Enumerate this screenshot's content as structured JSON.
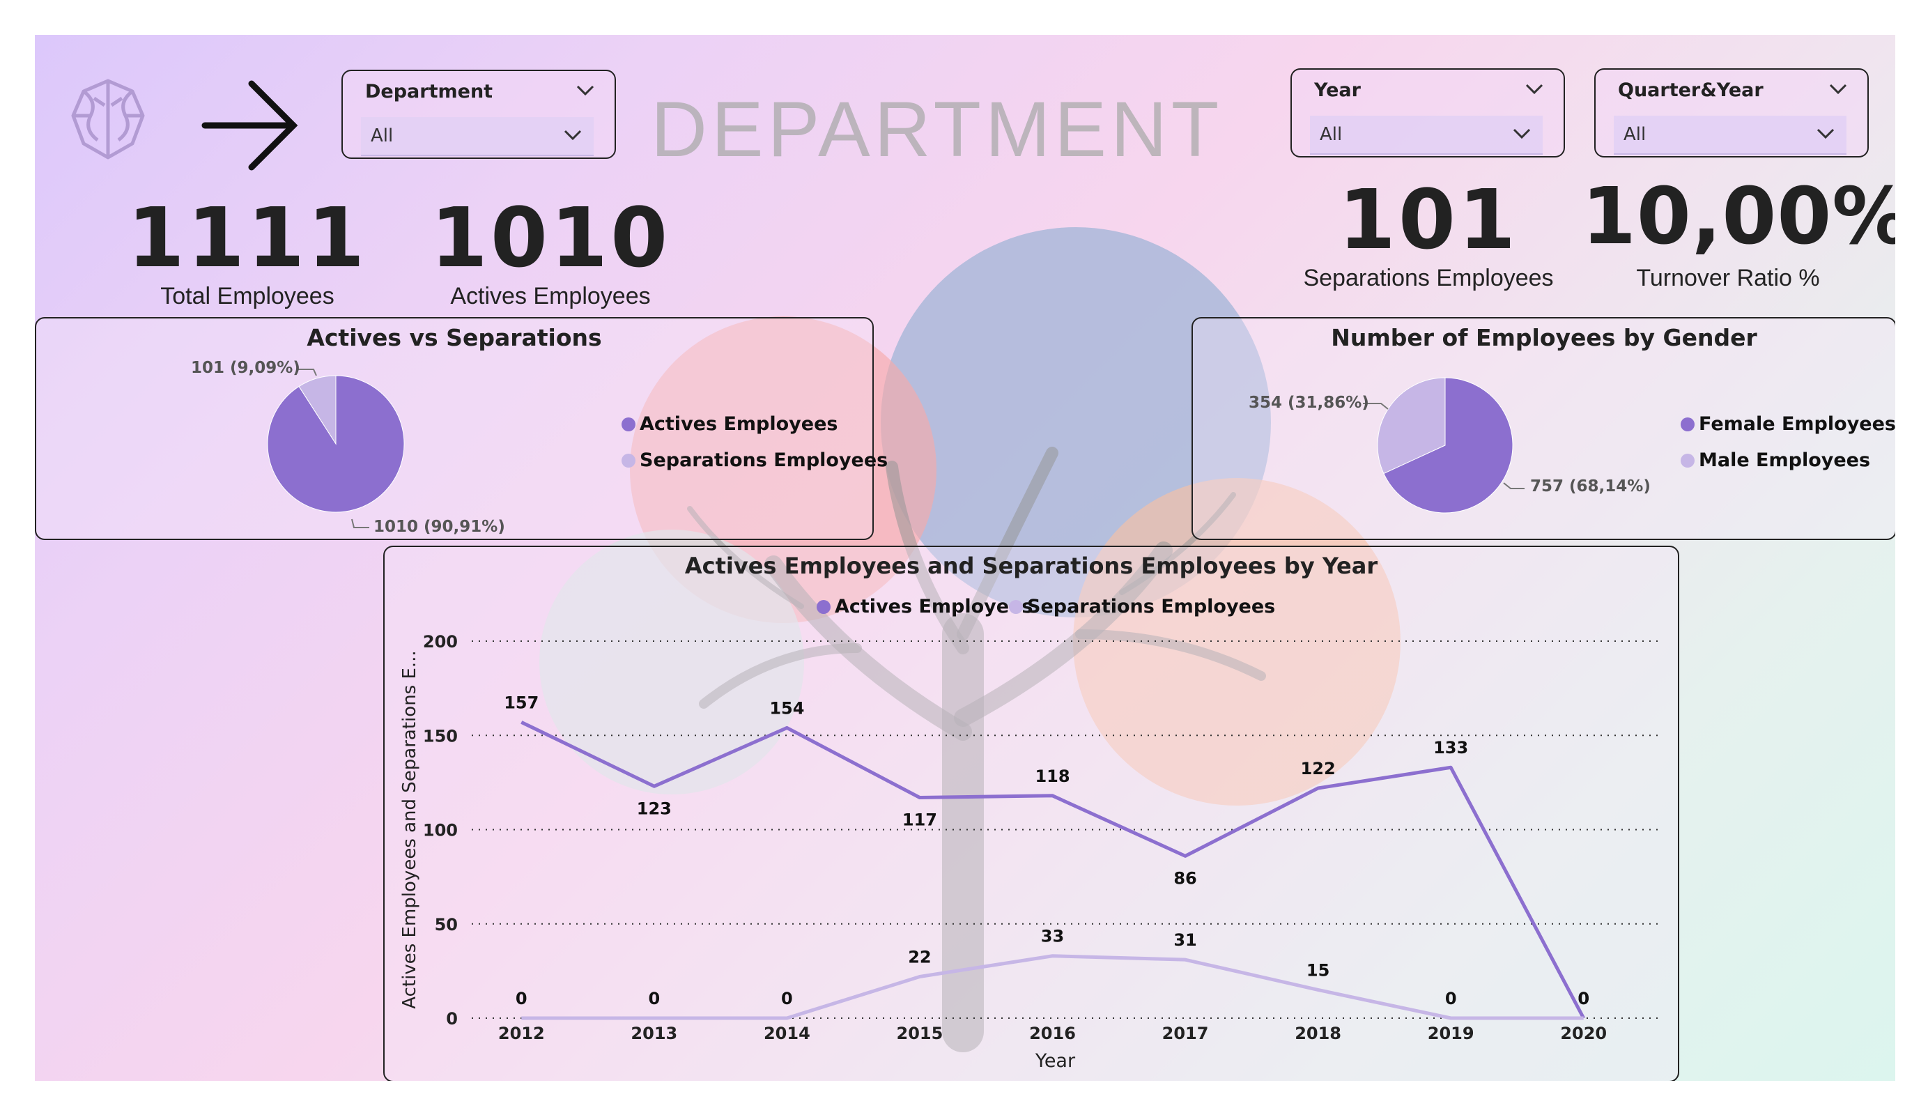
{
  "header": {
    "title": "DEPARTMENT",
    "logo_icon": "brain-icon",
    "nav_icon": "arrow-right-icon"
  },
  "filters": {
    "department": {
      "label": "Department",
      "value": "All"
    },
    "year": {
      "label": "Year",
      "value": "All"
    },
    "quarter_year": {
      "label": "Quarter&Year",
      "value": "All"
    }
  },
  "kpis": {
    "total_employees": {
      "value": "1111",
      "label": "Total Employees"
    },
    "actives_employees": {
      "value": "1010",
      "label": "Actives Employees"
    },
    "separations_employees": {
      "value": "101",
      "label": "Separations Employees"
    },
    "turnover_ratio": {
      "value": "10,00%",
      "label": "Turnover Ratio %"
    }
  },
  "colors": {
    "primary": "#8c6fcf",
    "secondary": "#c6b6e6"
  },
  "actives_vs_separations": {
    "title": "Actives vs Separations",
    "legend": [
      "Actives Employees",
      "Separations Employees"
    ],
    "slices": [
      {
        "name": "Actives Employees",
        "value": 1010,
        "label": "1010 (90,91%)"
      },
      {
        "name": "Separations Employees",
        "value": 101,
        "label": "101 (9,09%)"
      }
    ]
  },
  "gender": {
    "title": "Number of Employees by Gender",
    "legend": [
      "Female Employees",
      "Male Employees"
    ],
    "slices": [
      {
        "name": "Female Employees",
        "value": 757,
        "label": "757 (68,14%)"
      },
      {
        "name": "Male Employees",
        "value": 354,
        "label": "354 (31,86%)"
      }
    ]
  },
  "chart_data": {
    "type": "line",
    "title": "Actives Employees and Separations Employees by Year",
    "xlabel": "Year",
    "ylabel": "Actives Employees and Separations E...",
    "x": [
      "2012",
      "2013",
      "2014",
      "2015",
      "2016",
      "2017",
      "2018",
      "2019",
      "2020"
    ],
    "ylim": [
      0,
      200
    ],
    "yticks": [
      0,
      50,
      100,
      150,
      200
    ],
    "grid": true,
    "legend_position": "top-center",
    "series": [
      {
        "name": "Actives Employees",
        "values": [
          157,
          123,
          154,
          117,
          118,
          86,
          122,
          133,
          0
        ]
      },
      {
        "name": "Separations Employees",
        "values": [
          0,
          0,
          0,
          22,
          33,
          31,
          15,
          0,
          0
        ]
      }
    ]
  }
}
